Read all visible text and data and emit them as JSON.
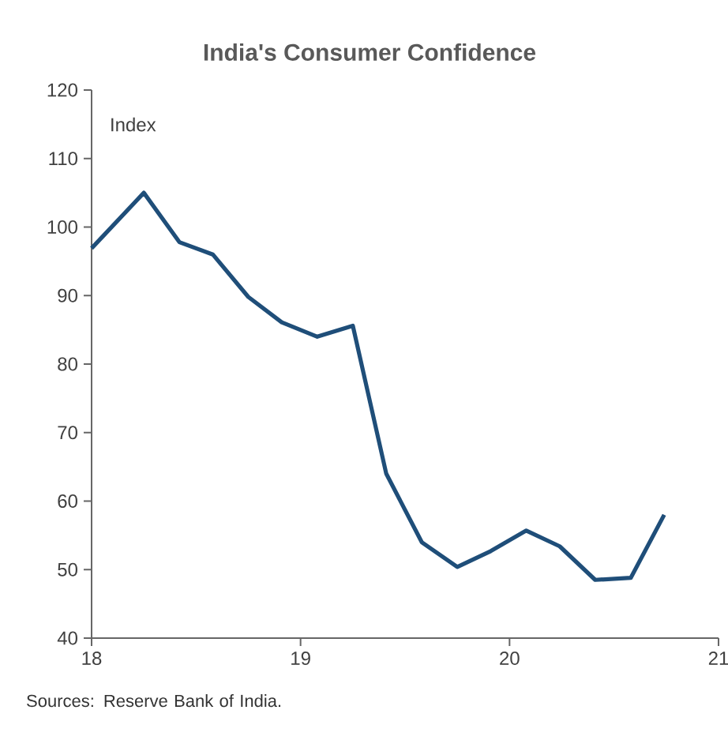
{
  "chart_data": {
    "type": "line",
    "title": "India's Consumer Confidence",
    "ylabel": "Index",
    "x": [
      18.0,
      18.25,
      18.42,
      18.58,
      18.75,
      18.91,
      19.08,
      19.25,
      19.41,
      19.58,
      19.75,
      19.91,
      20.08,
      20.24,
      20.41,
      20.58,
      20.74
    ],
    "series": [
      {
        "color": "#1f4e79",
        "values": [
          96.9,
          105,
          97.8,
          96,
          89.8,
          86.1,
          84,
          85.6,
          64,
          54,
          50.4,
          52.7,
          55.7,
          53.4,
          48.5,
          48.8,
          58
        ]
      }
    ],
    "xlim": [
      18,
      21
    ],
    "ylim": [
      40,
      120
    ],
    "xticks": [
      18,
      19,
      20,
      21
    ],
    "yticks": [
      40,
      50,
      60,
      70,
      80,
      90,
      100,
      110,
      120
    ],
    "grid": false,
    "marker": "none",
    "line_style": "solid",
    "annotations": [
      "Sources: Reserve Bank of India."
    ]
  }
}
